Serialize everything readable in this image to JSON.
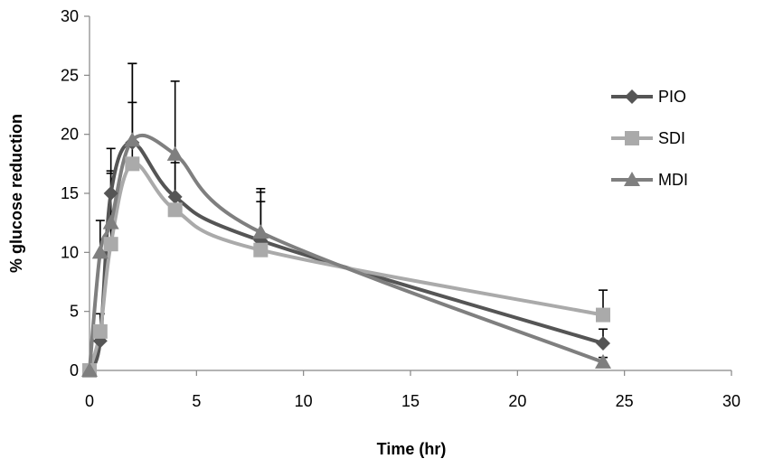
{
  "chart_data": {
    "type": "line",
    "title": "",
    "xlabel": "Time (hr)",
    "ylabel": "% glucose reduction",
    "xlim": [
      0,
      30
    ],
    "ylim": [
      0,
      30
    ],
    "xticks": [
      0,
      5,
      10,
      15,
      20,
      25,
      30
    ],
    "yticks": [
      0,
      5,
      10,
      15,
      20,
      25,
      30
    ],
    "grid": false,
    "legend_position": "right",
    "series": [
      {
        "name": "PIO",
        "marker": "diamond",
        "color": "#555555",
        "x": [
          0,
          0.5,
          1,
          2,
          4,
          8,
          24
        ],
        "y": [
          0,
          2.5,
          15,
          19.3,
          14.7,
          11,
          2.3
        ],
        "err": [
          0,
          1.0,
          3.8,
          6.7,
          3.4,
          4.4,
          1.2
        ]
      },
      {
        "name": "SDI",
        "marker": "square",
        "color": "#aaaaaa",
        "x": [
          0,
          0.5,
          1,
          2,
          4,
          8,
          24
        ],
        "y": [
          0,
          3.3,
          10.7,
          17.5,
          13.6,
          10.2,
          4.7
        ],
        "err": [
          0,
          1.5,
          6.0,
          5.2,
          4.0,
          4.1,
          2.1
        ]
      },
      {
        "name": "MDI",
        "marker": "triangle",
        "color": "#7f7f7f",
        "x": [
          0,
          0.5,
          1,
          2,
          4,
          8,
          24
        ],
        "y": [
          0,
          10,
          12.5,
          19.5,
          18.3,
          11.7,
          0.7
        ],
        "err": [
          0,
          2.7,
          4.4,
          6.5,
          6.2,
          3.4,
          0.4
        ]
      }
    ]
  }
}
